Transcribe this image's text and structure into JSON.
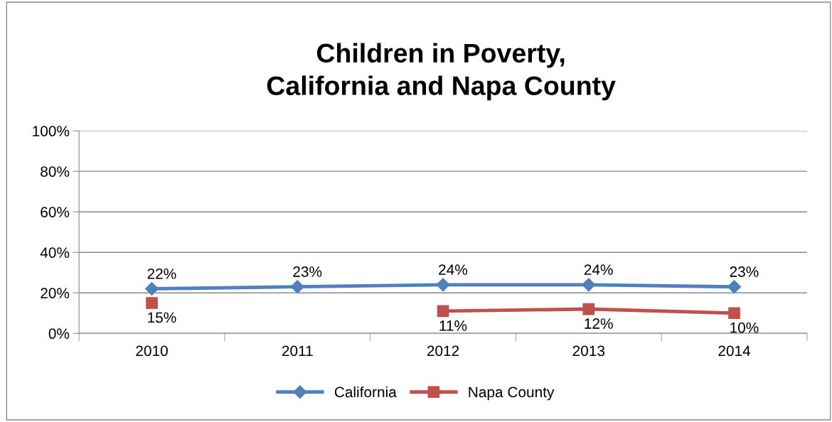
{
  "chart_data": {
    "type": "line",
    "title": "Children in Poverty,\nCalifornia and Napa County",
    "categories": [
      "2010",
      "2011",
      "2012",
      "2013",
      "2014"
    ],
    "series": [
      {
        "name": "California",
        "color": "#4f81bd",
        "marker": "diamond",
        "values": [
          22,
          23,
          24,
          24,
          23
        ],
        "value_labels": [
          "22%",
          "23%",
          "24%",
          "24%",
          "23%"
        ]
      },
      {
        "name": "Napa County",
        "color": "#c0504d",
        "marker": "square",
        "values": [
          15,
          null,
          11,
          12,
          10
        ],
        "value_labels": [
          "15%",
          null,
          "11%",
          "12%",
          "10%"
        ]
      }
    ],
    "ylim": [
      0,
      100
    ],
    "yticks": [
      {
        "value": 0,
        "label": "0%"
      },
      {
        "value": 20,
        "label": "20%"
      },
      {
        "value": 40,
        "label": "40%"
      },
      {
        "value": 60,
        "label": "60%"
      },
      {
        "value": 80,
        "label": "80%"
      },
      {
        "value": 100,
        "label": "100%"
      }
    ],
    "grid": "y",
    "legend": "bottom",
    "line_style": "solid"
  }
}
